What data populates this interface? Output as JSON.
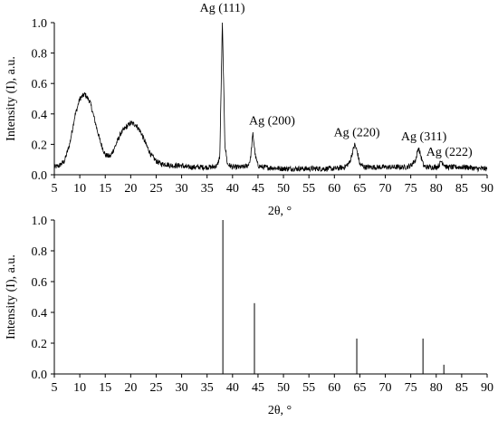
{
  "chart_data": [
    {
      "type": "line",
      "xlabel": "2θ, °",
      "ylabel": "Intensity (I), a.u.",
      "xlim": [
        5,
        90
      ],
      "ylim": [
        0,
        1.0
      ],
      "xticks": [
        5,
        10,
        15,
        20,
        25,
        30,
        35,
        40,
        45,
        50,
        55,
        60,
        65,
        70,
        75,
        80,
        85,
        90
      ],
      "yticks": [
        0.0,
        0.2,
        0.4,
        0.6,
        0.8,
        1.0
      ],
      "grid": false,
      "series": [
        {
          "x": [
            5,
            6,
            7,
            8,
            9,
            10,
            11,
            12,
            13,
            14,
            15,
            16,
            17,
            18,
            19,
            20,
            21,
            22,
            23,
            24,
            25,
            26,
            27,
            28,
            29,
            30,
            31,
            32,
            33,
            34,
            35,
            36,
            37,
            37.5,
            38,
            38.5,
            39,
            40,
            41,
            42,
            43,
            43.5,
            44,
            44.5,
            45,
            46,
            50,
            55,
            60,
            62,
            63,
            64,
            64.5,
            65,
            66,
            68,
            70,
            74,
            75,
            76,
            76.5,
            77,
            77.5,
            78,
            79,
            80,
            80.5,
            81,
            81.5,
            82,
            84,
            86,
            88,
            90
          ],
          "y": [
            0.05,
            0.06,
            0.09,
            0.2,
            0.38,
            0.5,
            0.53,
            0.48,
            0.35,
            0.22,
            0.13,
            0.12,
            0.19,
            0.27,
            0.31,
            0.34,
            0.33,
            0.28,
            0.2,
            0.13,
            0.09,
            0.07,
            0.07,
            0.06,
            0.06,
            0.06,
            0.05,
            0.05,
            0.05,
            0.05,
            0.05,
            0.05,
            0.06,
            0.12,
            1.0,
            0.2,
            0.07,
            0.05,
            0.05,
            0.05,
            0.06,
            0.1,
            0.27,
            0.12,
            0.06,
            0.05,
            0.04,
            0.04,
            0.04,
            0.05,
            0.08,
            0.2,
            0.15,
            0.07,
            0.05,
            0.05,
            0.05,
            0.05,
            0.06,
            0.1,
            0.18,
            0.12,
            0.06,
            0.05,
            0.05,
            0.05,
            0.06,
            0.09,
            0.07,
            0.05,
            0.05,
            0.05,
            0.04,
            0.04
          ]
        }
      ],
      "annotations": [
        {
          "text": "Ag (111)",
          "x": 38.0,
          "y": 1.0
        },
        {
          "text": "Ag (200)",
          "x": 44.2,
          "y": 0.27
        },
        {
          "text": "Ag (220)",
          "x": 64.4,
          "y": 0.2
        },
        {
          "text": "Ag (311)",
          "x": 77.4,
          "y": 0.18
        },
        {
          "text": "Ag (222)",
          "x": 81.5,
          "y": 0.09
        }
      ]
    },
    {
      "type": "bar",
      "xlabel": "2θ, °",
      "ylabel": "Intensity (I), a.u.",
      "xlim": [
        5,
        90
      ],
      "ylim": [
        0,
        1.0
      ],
      "xticks": [
        5,
        10,
        15,
        20,
        25,
        30,
        35,
        40,
        45,
        50,
        55,
        60,
        65,
        70,
        75,
        80,
        85,
        90
      ],
      "yticks": [
        0.0,
        0.2,
        0.4,
        0.6,
        0.8,
        1.0
      ],
      "grid": false,
      "x": [
        38.1,
        44.3,
        64.4,
        77.4,
        81.5
      ],
      "values": [
        1.0,
        0.46,
        0.23,
        0.23,
        0.06
      ]
    }
  ]
}
